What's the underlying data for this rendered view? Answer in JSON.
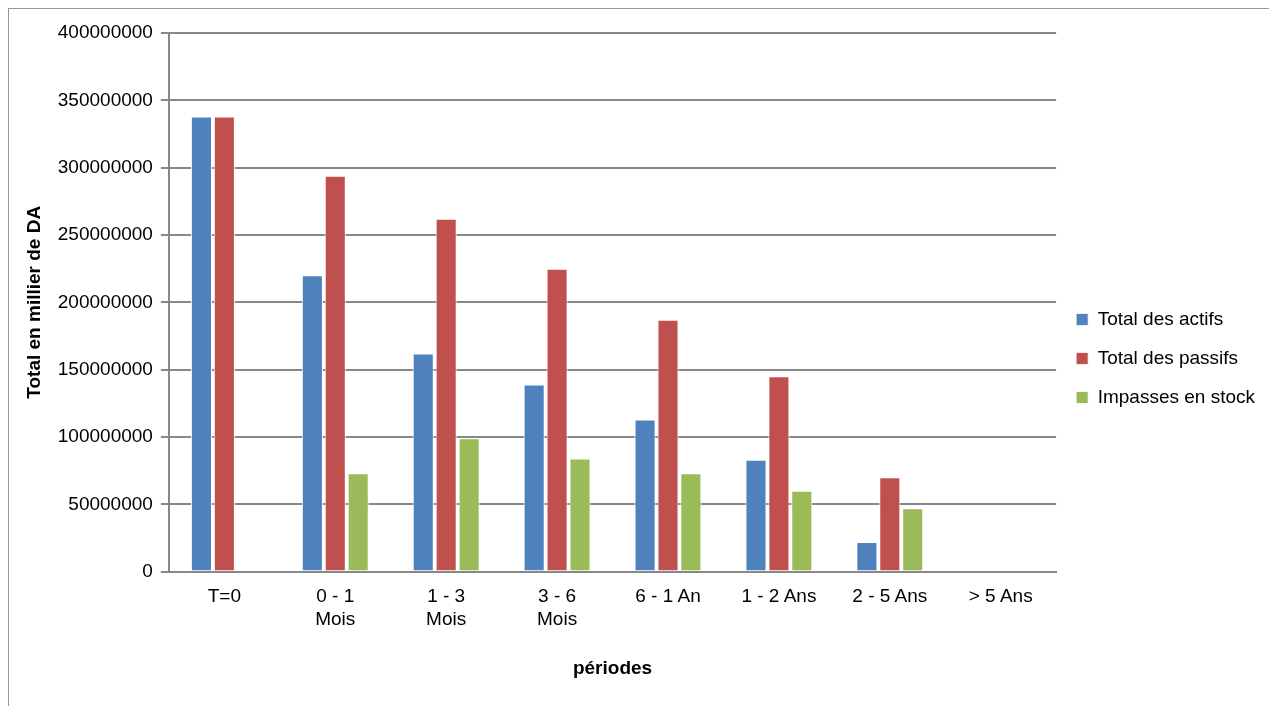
{
  "chart_data": {
    "type": "bar",
    "xlabel": "périodes",
    "ylabel": "Total en millier de DA",
    "categories": [
      "T=0",
      "0 - 1 Mois",
      "1 - 3 Mois",
      "3 - 6 Mois",
      "6 - 1 An",
      "1 - 2 Ans",
      "2 - 5 Ans",
      "> 5 Ans"
    ],
    "series": [
      {
        "name": "Total des actifs",
        "color": "#4f81bd",
        "values": [
          338000000,
          220000000,
          162000000,
          139000000,
          113000000,
          83000000,
          22000000,
          null
        ]
      },
      {
        "name": "Total des passifs",
        "color": "#c0504d",
        "values": [
          338000000,
          294000000,
          262000000,
          225000000,
          187000000,
          145000000,
          70000000,
          null
        ]
      },
      {
        "name": "Impasses en stock",
        "color": "#9bbb59",
        "values": [
          null,
          73000000,
          99000000,
          84000000,
          73000000,
          60000000,
          47000000,
          null
        ]
      }
    ],
    "ylim": [
      0,
      400000000
    ],
    "yticks": [
      0,
      50000000,
      100000000,
      150000000,
      200000000,
      250000000,
      300000000,
      350000000,
      400000000
    ],
    "grid": "y",
    "legend": "right"
  }
}
